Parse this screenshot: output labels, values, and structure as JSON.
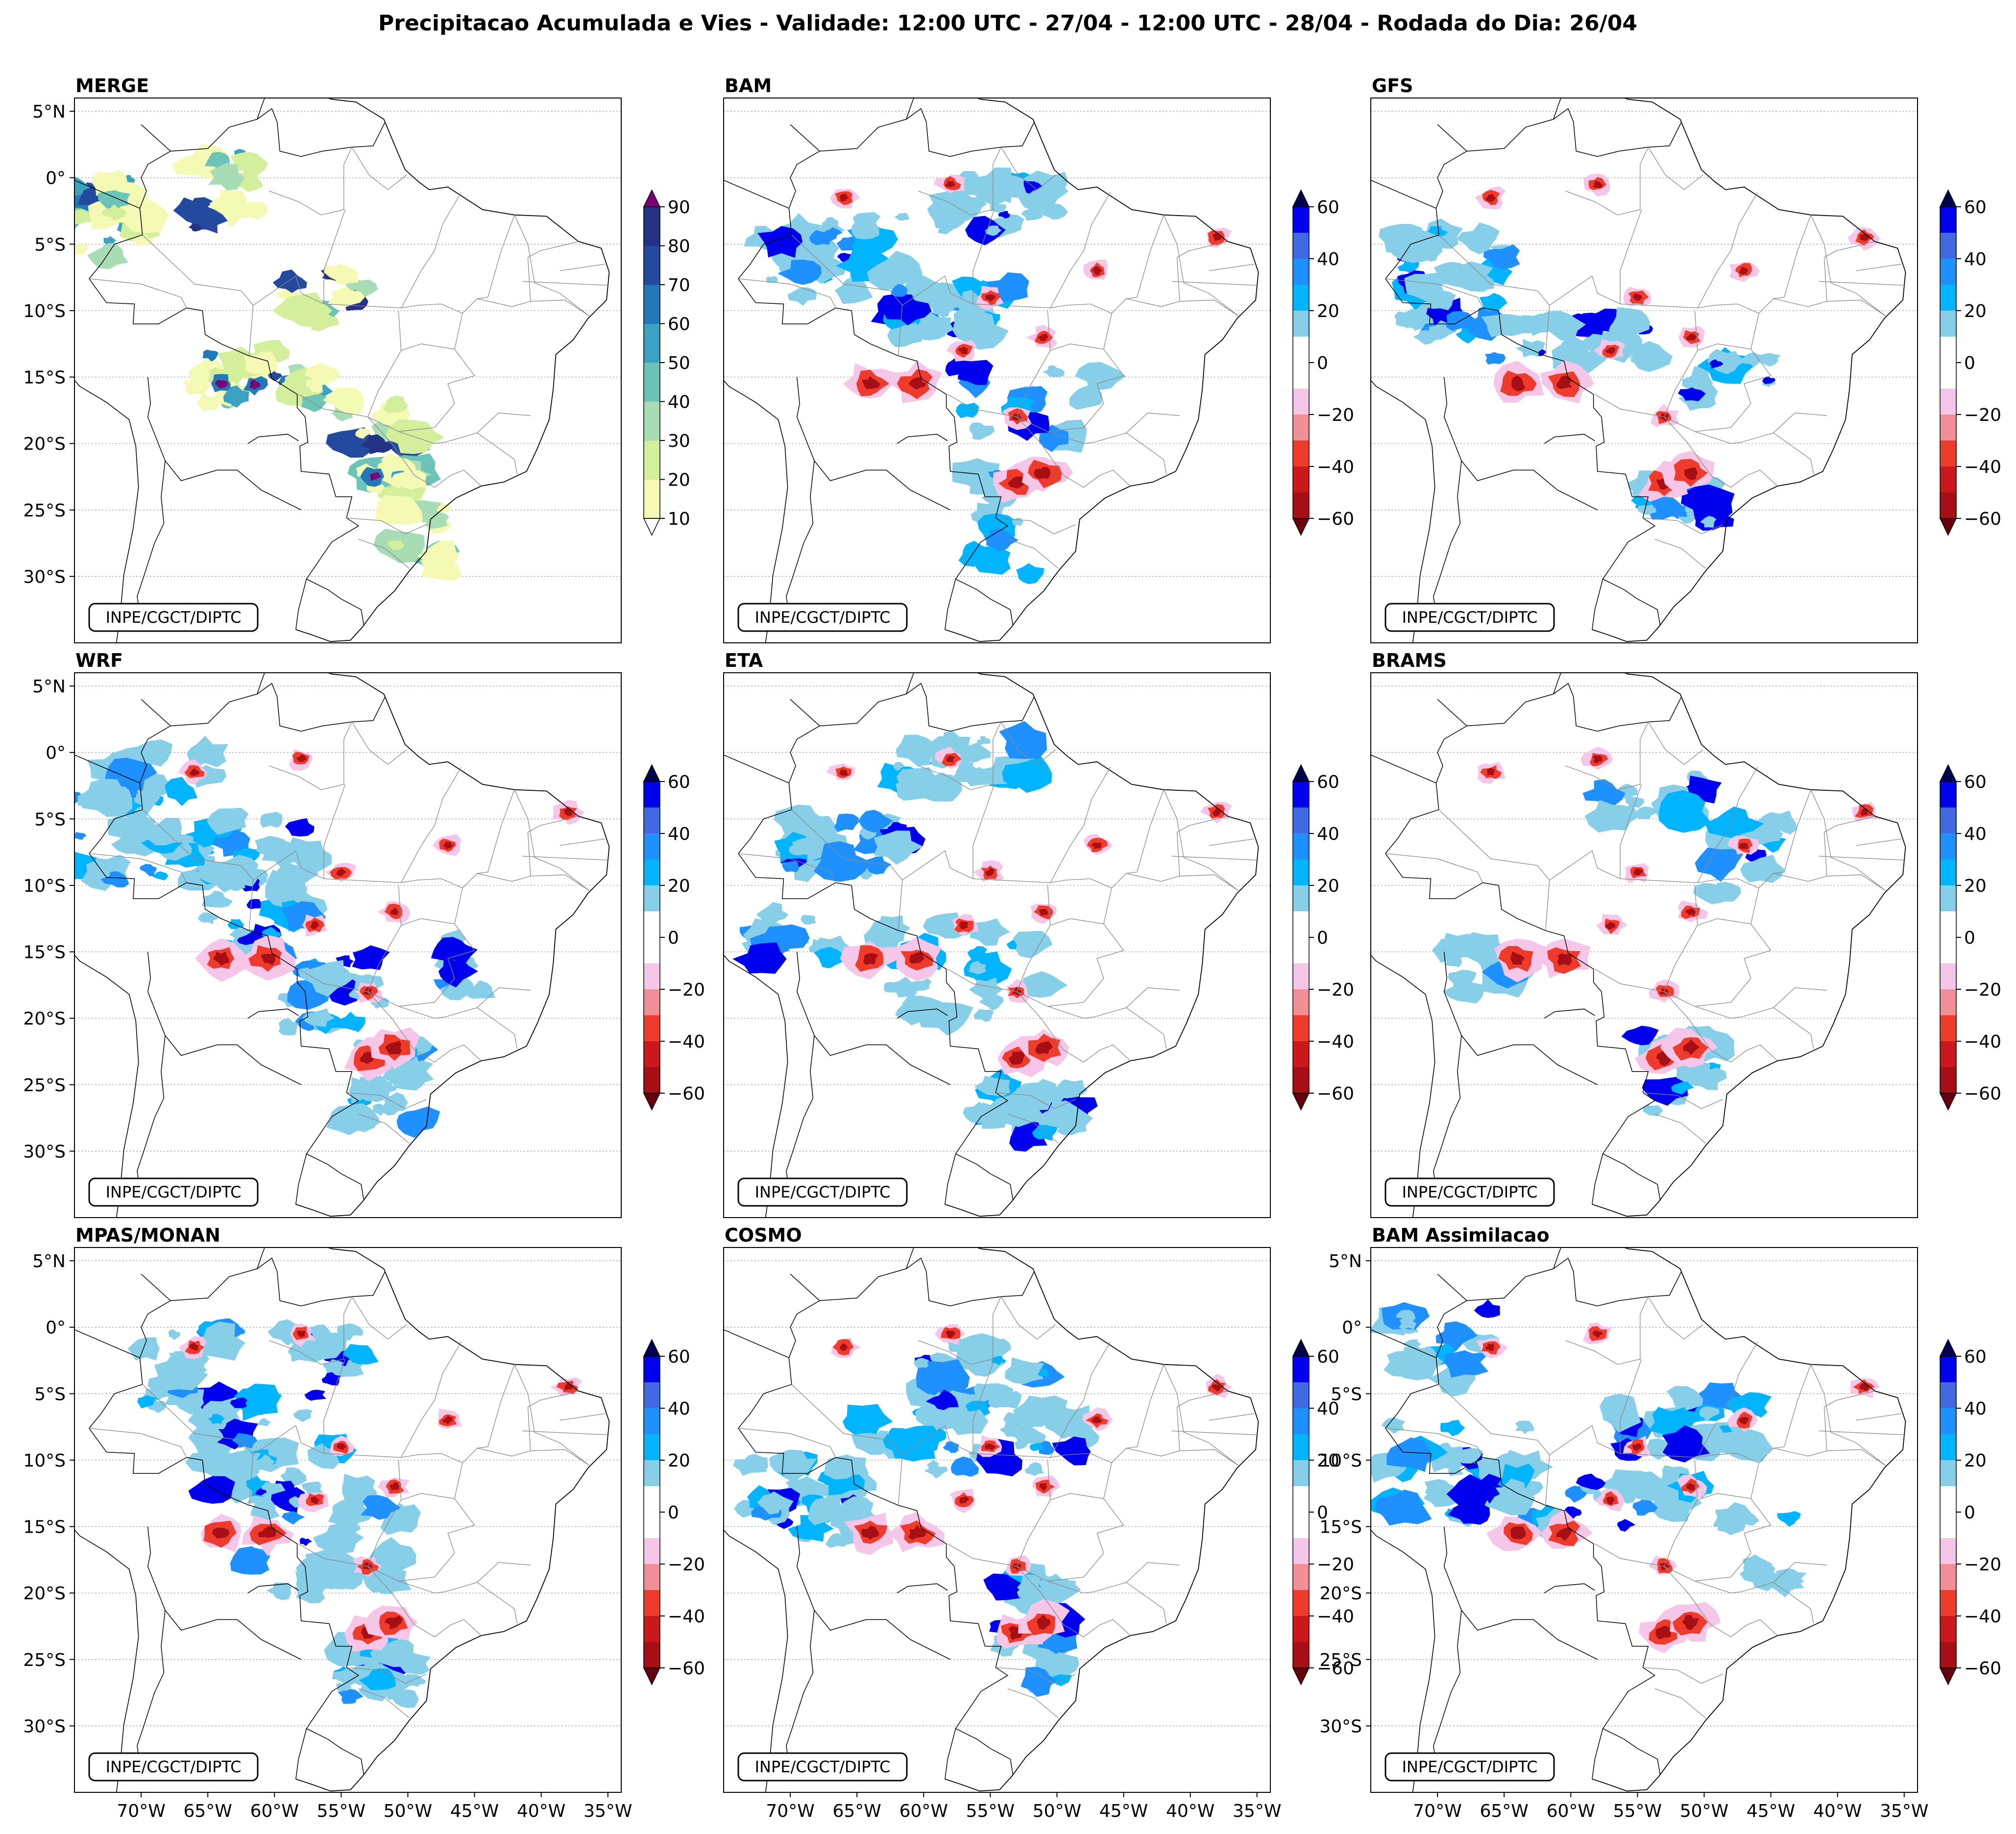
{
  "figure_title": "Precipitacao Acumulada e Vies - Validade: 12:00 UTC - 27/04 - 12:00 UTC - 28/04 - Rodada do Dia: 26/04",
  "credit": "INPE/CGCT/DIPTC",
  "lat_ticks": [
    "5°N",
    "0°",
    "5°S",
    "10°S",
    "15°S",
    "20°S",
    "25°S",
    "30°S"
  ],
  "lon_ticks": [
    "70°W",
    "65°W",
    "60°W",
    "55°W",
    "50°W",
    "45°W",
    "40°W",
    "35°W"
  ],
  "colors": {
    "precip": [
      "#f4f9b4",
      "#d4ef9c",
      "#a8dcb4",
      "#6cc4b8",
      "#3ba3c1",
      "#2379b5",
      "#234a9f",
      "#243283",
      "#132160",
      "#7a0177"
    ],
    "bias": [
      "#67000d",
      "#a50f15",
      "#cb181d",
      "#ef3b2c",
      "#f18f96",
      "#f5c6e8",
      "#ffffff",
      "#ffffff",
      "#87cfe9",
      "#00b4ff",
      "#1e90ff",
      "#4169e1",
      "#0000ee",
      "#00004f"
    ]
  },
  "chart_data": [
    {
      "type": "heatmap",
      "title": "MERGE",
      "variable": "accumulated precipitation (mm)",
      "colorbar_levels": [
        10,
        20,
        30,
        40,
        50,
        60,
        70,
        80,
        90
      ],
      "colorbar_tick_labels": [
        "10",
        "20",
        "30",
        "40",
        "50",
        "60",
        "70",
        "80",
        "90"
      ],
      "xlim": [
        -75,
        -34
      ],
      "ylim": [
        -35,
        6
      ]
    },
    {
      "type": "heatmap",
      "title": "BAM",
      "variable": "bias (mm)",
      "colorbar_tick_labels": [
        "60",
        "40",
        "20",
        "0",
        "−20",
        "−40",
        "−60"
      ],
      "colorbar_range": [
        -60,
        60
      ],
      "xlim": [
        -75,
        -34
      ],
      "ylim": [
        -35,
        6
      ]
    },
    {
      "type": "heatmap",
      "title": "GFS",
      "variable": "bias (mm)",
      "colorbar_tick_labels": [
        "60",
        "40",
        "20",
        "0",
        "−20",
        "−40",
        "−60"
      ],
      "colorbar_range": [
        -60,
        60
      ],
      "xlim": [
        -75,
        -34
      ],
      "ylim": [
        -35,
        6
      ]
    },
    {
      "type": "heatmap",
      "title": "WRF",
      "variable": "bias (mm)",
      "colorbar_tick_labels": [
        "60",
        "40",
        "20",
        "0",
        "−20",
        "−40",
        "−60"
      ],
      "colorbar_range": [
        -60,
        60
      ],
      "xlim": [
        -75,
        -34
      ],
      "ylim": [
        -35,
        6
      ]
    },
    {
      "type": "heatmap",
      "title": "ETA",
      "variable": "bias (mm)",
      "colorbar_tick_labels": [
        "60",
        "40",
        "20",
        "0",
        "−20",
        "−40",
        "−60"
      ],
      "colorbar_range": [
        -60,
        60
      ],
      "xlim": [
        -75,
        -34
      ],
      "ylim": [
        -35,
        6
      ]
    },
    {
      "type": "heatmap",
      "title": "BRAMS",
      "variable": "bias (mm)",
      "colorbar_tick_labels": [
        "60",
        "40",
        "20",
        "0",
        "−20",
        "−40",
        "−60"
      ],
      "colorbar_range": [
        -60,
        60
      ],
      "xlim": [
        -75,
        -34
      ],
      "ylim": [
        -35,
        6
      ]
    },
    {
      "type": "heatmap",
      "title": "MPAS/MONAN",
      "variable": "bias (mm)",
      "colorbar_tick_labels": [
        "60",
        "40",
        "20",
        "0",
        "−20",
        "−40",
        "−60"
      ],
      "colorbar_range": [
        -60,
        60
      ],
      "xlim": [
        -75,
        -34
      ],
      "ylim": [
        -35,
        6
      ]
    },
    {
      "type": "heatmap",
      "title": "COSMO",
      "variable": "bias (mm)",
      "colorbar_tick_labels": [
        "60",
        "40",
        "20",
        "0",
        "−20",
        "−40",
        "−60"
      ],
      "colorbar_range": [
        -60,
        60
      ],
      "xlim": [
        -75,
        -34
      ],
      "ylim": [
        -35,
        6
      ]
    },
    {
      "type": "heatmap",
      "title": "BAM Assimilacao",
      "variable": "bias (mm)",
      "colorbar_tick_labels": [
        "60",
        "40",
        "20",
        "0",
        "−20",
        "−40",
        "−60"
      ],
      "colorbar_range": [
        -60,
        60
      ],
      "xlim": [
        -75,
        -34
      ],
      "ylim": [
        -35,
        6
      ]
    }
  ]
}
